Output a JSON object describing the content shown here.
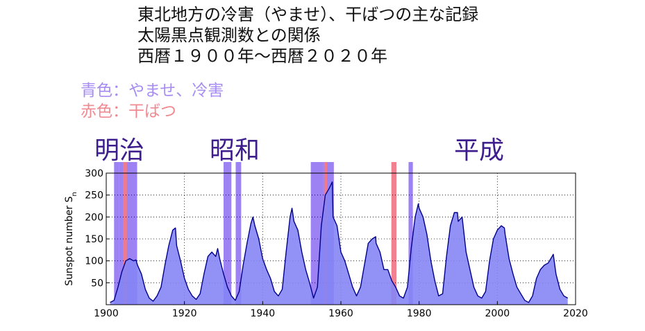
{
  "title_lines": [
    "東北地方の冷害（やませ）、干ばつの主な記録",
    "太陽黒点観測数との関係",
    "西暦１９００年〜西暦２０２０年"
  ],
  "legend": {
    "blue_label": "青色：やませ、冷害",
    "red_label": "赤色：干ばつ"
  },
  "eras": [
    {
      "label": "明治"
    },
    {
      "label": "昭和"
    },
    {
      "label": "平成"
    }
  ],
  "colors": {
    "blue_band": "#8b6cf0",
    "red_band": "#f07a8a",
    "fill": "#8585f5",
    "line": "#00008b",
    "blue_text": "#a78cf2",
    "red_text": "#f08a92",
    "era_text": "#3d1e8c"
  },
  "chart_data": {
    "type": "area",
    "xlabel": "",
    "ylabel": "Sunspot number S",
    "ylabel_sub": "n",
    "xlim": [
      1900,
      2020
    ],
    "ylim": [
      0,
      300
    ],
    "xticks": [
      "1900",
      "1920",
      "1940",
      "1960",
      "1980",
      "2000",
      "2020"
    ],
    "yticks": [
      "50",
      "100",
      "150",
      "200",
      "250",
      "300"
    ],
    "grid": true,
    "series": [
      {
        "x": [
          1901,
          1902,
          1903,
          1904,
          1905,
          1906,
          1907,
          1907.6,
          1908,
          1909,
          1910,
          1911,
          1912,
          1913,
          1914,
          1915,
          1916,
          1917,
          1917.7,
          1918,
          1919,
          1920,
          1921,
          1922,
          1923,
          1924,
          1925,
          1926,
          1927,
          1928,
          1928.5,
          1929,
          1930,
          1931,
          1932,
          1933,
          1934,
          1935,
          1936,
          1937,
          1937.5,
          1938,
          1939,
          1940,
          1941,
          1942,
          1943,
          1944,
          1945,
          1946,
          1947,
          1947.5,
          1948,
          1949,
          1950,
          1951,
          1952,
          1953,
          1954,
          1955,
          1956,
          1957,
          1957.8,
          1958,
          1959,
          1960,
          1961,
          1962,
          1963,
          1964,
          1965,
          1966,
          1967,
          1968,
          1968.9,
          1969,
          1970,
          1971,
          1972,
          1973,
          1974,
          1975,
          1976,
          1977,
          1978,
          1979,
          1979.8,
          1980,
          1981,
          1982,
          1983,
          1984,
          1985,
          1986,
          1987,
          1988,
          1989,
          1989.8,
          1990,
          1991,
          1992,
          1993,
          1994,
          1995,
          1996,
          1997,
          1998,
          1999,
          2000,
          2001,
          2001.8,
          2002,
          2003,
          2004,
          2005,
          2006,
          2007,
          2008,
          2009,
          2010,
          2011,
          2012,
          2013,
          2014,
          2014.3,
          2015,
          2016,
          2017,
          2018
        ],
        "values": [
          5,
          10,
          40,
          75,
          100,
          105,
          100,
          102,
          90,
          70,
          35,
          15,
          8,
          20,
          40,
          90,
          135,
          170,
          175,
          135,
          100,
          60,
          35,
          20,
          12,
          25,
          70,
          110,
          120,
          110,
          128,
          105,
          70,
          40,
          20,
          10,
          30,
          90,
          140,
          185,
          200,
          180,
          150,
          105,
          80,
          60,
          30,
          20,
          35,
          120,
          200,
          220,
          190,
          170,
          120,
          80,
          50,
          15,
          40,
          180,
          250,
          265,
          280,
          200,
          180,
          120,
          100,
          70,
          40,
          20,
          40,
          90,
          140,
          150,
          155,
          140,
          120,
          80,
          80,
          55,
          40,
          20,
          15,
          40,
          130,
          200,
          230,
          220,
          200,
          160,
          100,
          55,
          20,
          25,
          110,
          180,
          210,
          210,
          190,
          200,
          120,
          80,
          40,
          20,
          15,
          30,
          100,
          150,
          170,
          180,
          175,
          160,
          105,
          70,
          40,
          25,
          10,
          5,
          20,
          60,
          80,
          90,
          95,
          110,
          115,
          70,
          35,
          20,
          15
        ]
      }
    ],
    "bands_blue": [
      [
        1902,
        1903.3
      ],
      [
        1903.3,
        1907.9
      ],
      [
        1930,
        1932
      ],
      [
        1933.1,
        1934.5
      ],
      [
        1952.3,
        1955.4
      ],
      [
        1955.4,
        1958.2
      ],
      [
        1977.3,
        1978.4
      ]
    ],
    "bands_red": [
      [
        1904.3,
        1905.3
      ],
      [
        1955.7,
        1956.5
      ],
      [
        1972.9,
        1974.2
      ]
    ]
  }
}
